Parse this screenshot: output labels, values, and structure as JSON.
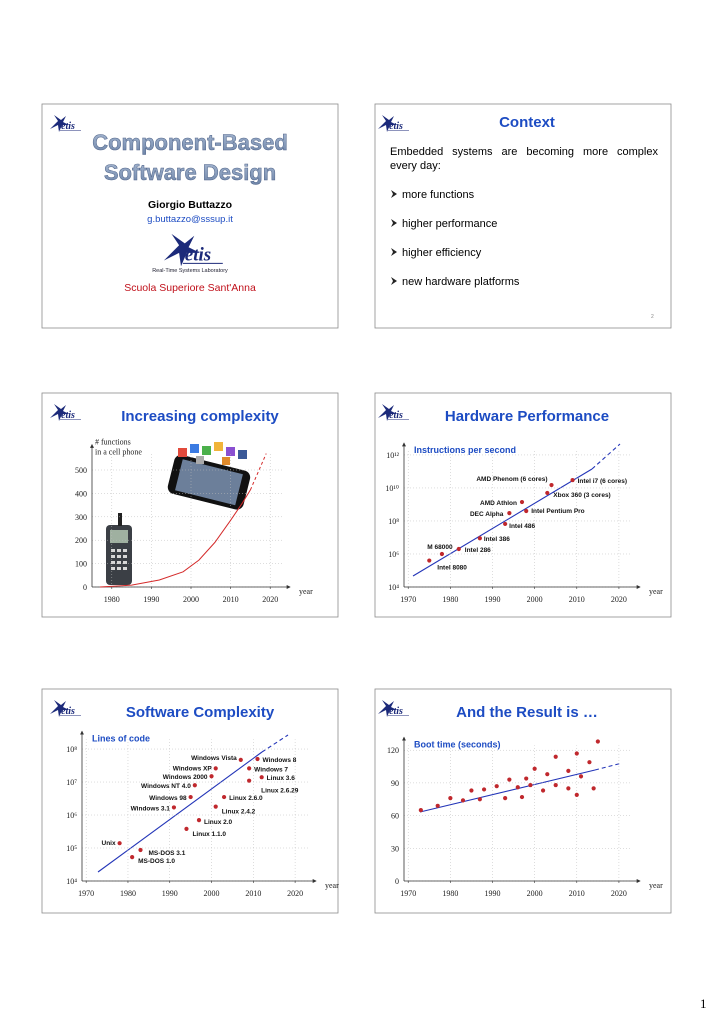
{
  "logo_text": "etis",
  "page_number": "1",
  "slides": [
    {
      "title_lines": [
        "Component-Based",
        "Software Design"
      ],
      "author": "Giorgio Buttazzo",
      "email": "g.buttazzo@sssup.it",
      "lab": "Real-Time Systems Laboratory",
      "institute": "Scuola Superiore Sant'Anna"
    },
    {
      "title": "Context",
      "intro": "Embedded systems are becoming more complex every day:",
      "bullets": [
        "more functions",
        "higher performance",
        "higher efficiency",
        "new hardware platforms"
      ],
      "slide_number": "2"
    },
    {
      "title": "Increasing complexity",
      "chart": {
        "type": "line",
        "ylabel": [
          "# functions",
          "in a cell phone"
        ],
        "xlabel": "year",
        "x": [
          1977,
          1985,
          1992,
          1998,
          2002,
          2006,
          2010,
          2013,
          2015,
          2019
        ],
        "values": [
          0,
          8,
          30,
          65,
          115,
          190,
          285,
          360,
          415,
          null
        ],
        "projection": [
          null,
          null,
          null,
          null,
          null,
          null,
          null,
          null,
          415,
          570
        ],
        "color": "#d42a2a",
        "xlim": [
          1975,
          2025
        ],
        "xticks": [
          1980,
          1990,
          2000,
          2010,
          2020
        ],
        "ylim": [
          0,
          600
        ],
        "yticks": [
          0,
          100,
          200,
          300,
          400,
          500
        ],
        "grid": true
      }
    },
    {
      "title": "Hardware Performance",
      "chart": {
        "type": "scatter",
        "ylabel": "Instructions per second",
        "xlabel": "year",
        "log_y": true,
        "labels": [
          "Intel 8080",
          "M 68000",
          "Intel 286",
          "Intel 386",
          "Intel 486",
          "DEC Alpha",
          "Intel Pentium Pro",
          "AMD Athlon",
          "AMD Phenom (6 cores)",
          "Intel i7 (6 cores)",
          "Xbox 360 (3 cores)"
        ],
        "x": [
          1975,
          1978,
          1982,
          1987,
          1993,
          1994,
          1998,
          1997,
          2004,
          2009,
          2003
        ],
        "values": [
          400000,
          1000000,
          2000000,
          9000000,
          66000000,
          300000000,
          400000000,
          1400000000,
          15000000000,
          30000000000,
          5000000000
        ],
        "color": "#c0282d",
        "xlim": [
          1969,
          2025
        ],
        "xticks": [
          1970,
          1980,
          1990,
          2000,
          2010,
          2020
        ],
        "ylim": [
          10000,
          4000000000000
        ],
        "yticks": [
          {
            "value": 10000,
            "label": "10⁴"
          },
          {
            "value": 1000000,
            "label": "10⁶"
          },
          {
            "value": 100000000,
            "label": "10⁸"
          },
          {
            "value": 10000000000,
            "label": "10¹⁰"
          },
          {
            "value": 1000000000000,
            "label": "10¹²"
          }
        ],
        "grid": true
      }
    },
    {
      "title": "Software Complexity",
      "chart": {
        "type": "scatter",
        "ylabel": "Lines of code",
        "xlabel": "year",
        "log_y": true,
        "labels": [
          "Windows Vista",
          "Windows 8",
          "Windows XP",
          "Windows 7",
          "Windows 2000",
          "Linux 3.6",
          "Windows NT 4.0",
          "Linux 2.6.29",
          "Windows 98",
          "Linux 2.6.0",
          "Windows 3.1",
          "Linux 2.4.2",
          "Linux 2.0",
          "Linux 1.1.0",
          "Unix",
          "MS-DOS 3.1",
          "MS-DOS 1.0"
        ],
        "x": [
          2007,
          2011,
          2001,
          2009,
          2000,
          2012,
          1996,
          2009,
          1995,
          2003,
          1991,
          2001,
          1997,
          1994,
          1978,
          1983,
          1981
        ],
        "values": [
          47000000,
          50000000,
          26000000,
          26000000,
          15000000,
          14000000,
          8000000,
          11000000,
          3500000,
          3500000,
          1700000,
          1800000,
          700000,
          380000,
          140000,
          87000,
          53000
        ],
        "color": "#c0282d",
        "xlim": [
          1969,
          2025
        ],
        "xticks": [
          1970,
          1980,
          1990,
          2000,
          2010,
          2020
        ],
        "ylim": [
          10000,
          300000000
        ],
        "yticks": [
          {
            "value": 10000,
            "label": "10⁴"
          },
          {
            "value": 100000,
            "label": "10⁵"
          },
          {
            "value": 1000000,
            "label": "10⁶"
          },
          {
            "value": 10000000,
            "label": "10⁷"
          },
          {
            "value": 100000000,
            "label": "10⁸"
          }
        ],
        "grid": true
      }
    },
    {
      "title": "And the Result is …",
      "chart": {
        "type": "scatter",
        "ylabel": "Boot time (seconds)",
        "xlabel": "year",
        "x": [
          1973,
          1977,
          1980,
          1983,
          1985,
          1987,
          1988,
          1991,
          1993,
          1994,
          1996,
          1997,
          1998,
          1999,
          2000,
          2002,
          2003,
          2005,
          2005,
          2008,
          2008,
          2010,
          2010,
          2011,
          2013,
          2014,
          2015
        ],
        "values": [
          65,
          69,
          76,
          74,
          83,
          75,
          84,
          87,
          76,
          93,
          86,
          77,
          94,
          88,
          103,
          83,
          98,
          114,
          88,
          85,
          101,
          79,
          117,
          96,
          109,
          85,
          128
        ],
        "color": "#c0282d",
        "xlim": [
          1969,
          2025
        ],
        "xticks": [
          1970,
          1980,
          1990,
          2000,
          2010,
          2020
        ],
        "ylim": [
          0,
          130
        ],
        "yticks": [
          0,
          30,
          60,
          90,
          120
        ],
        "grid": true
      }
    }
  ]
}
